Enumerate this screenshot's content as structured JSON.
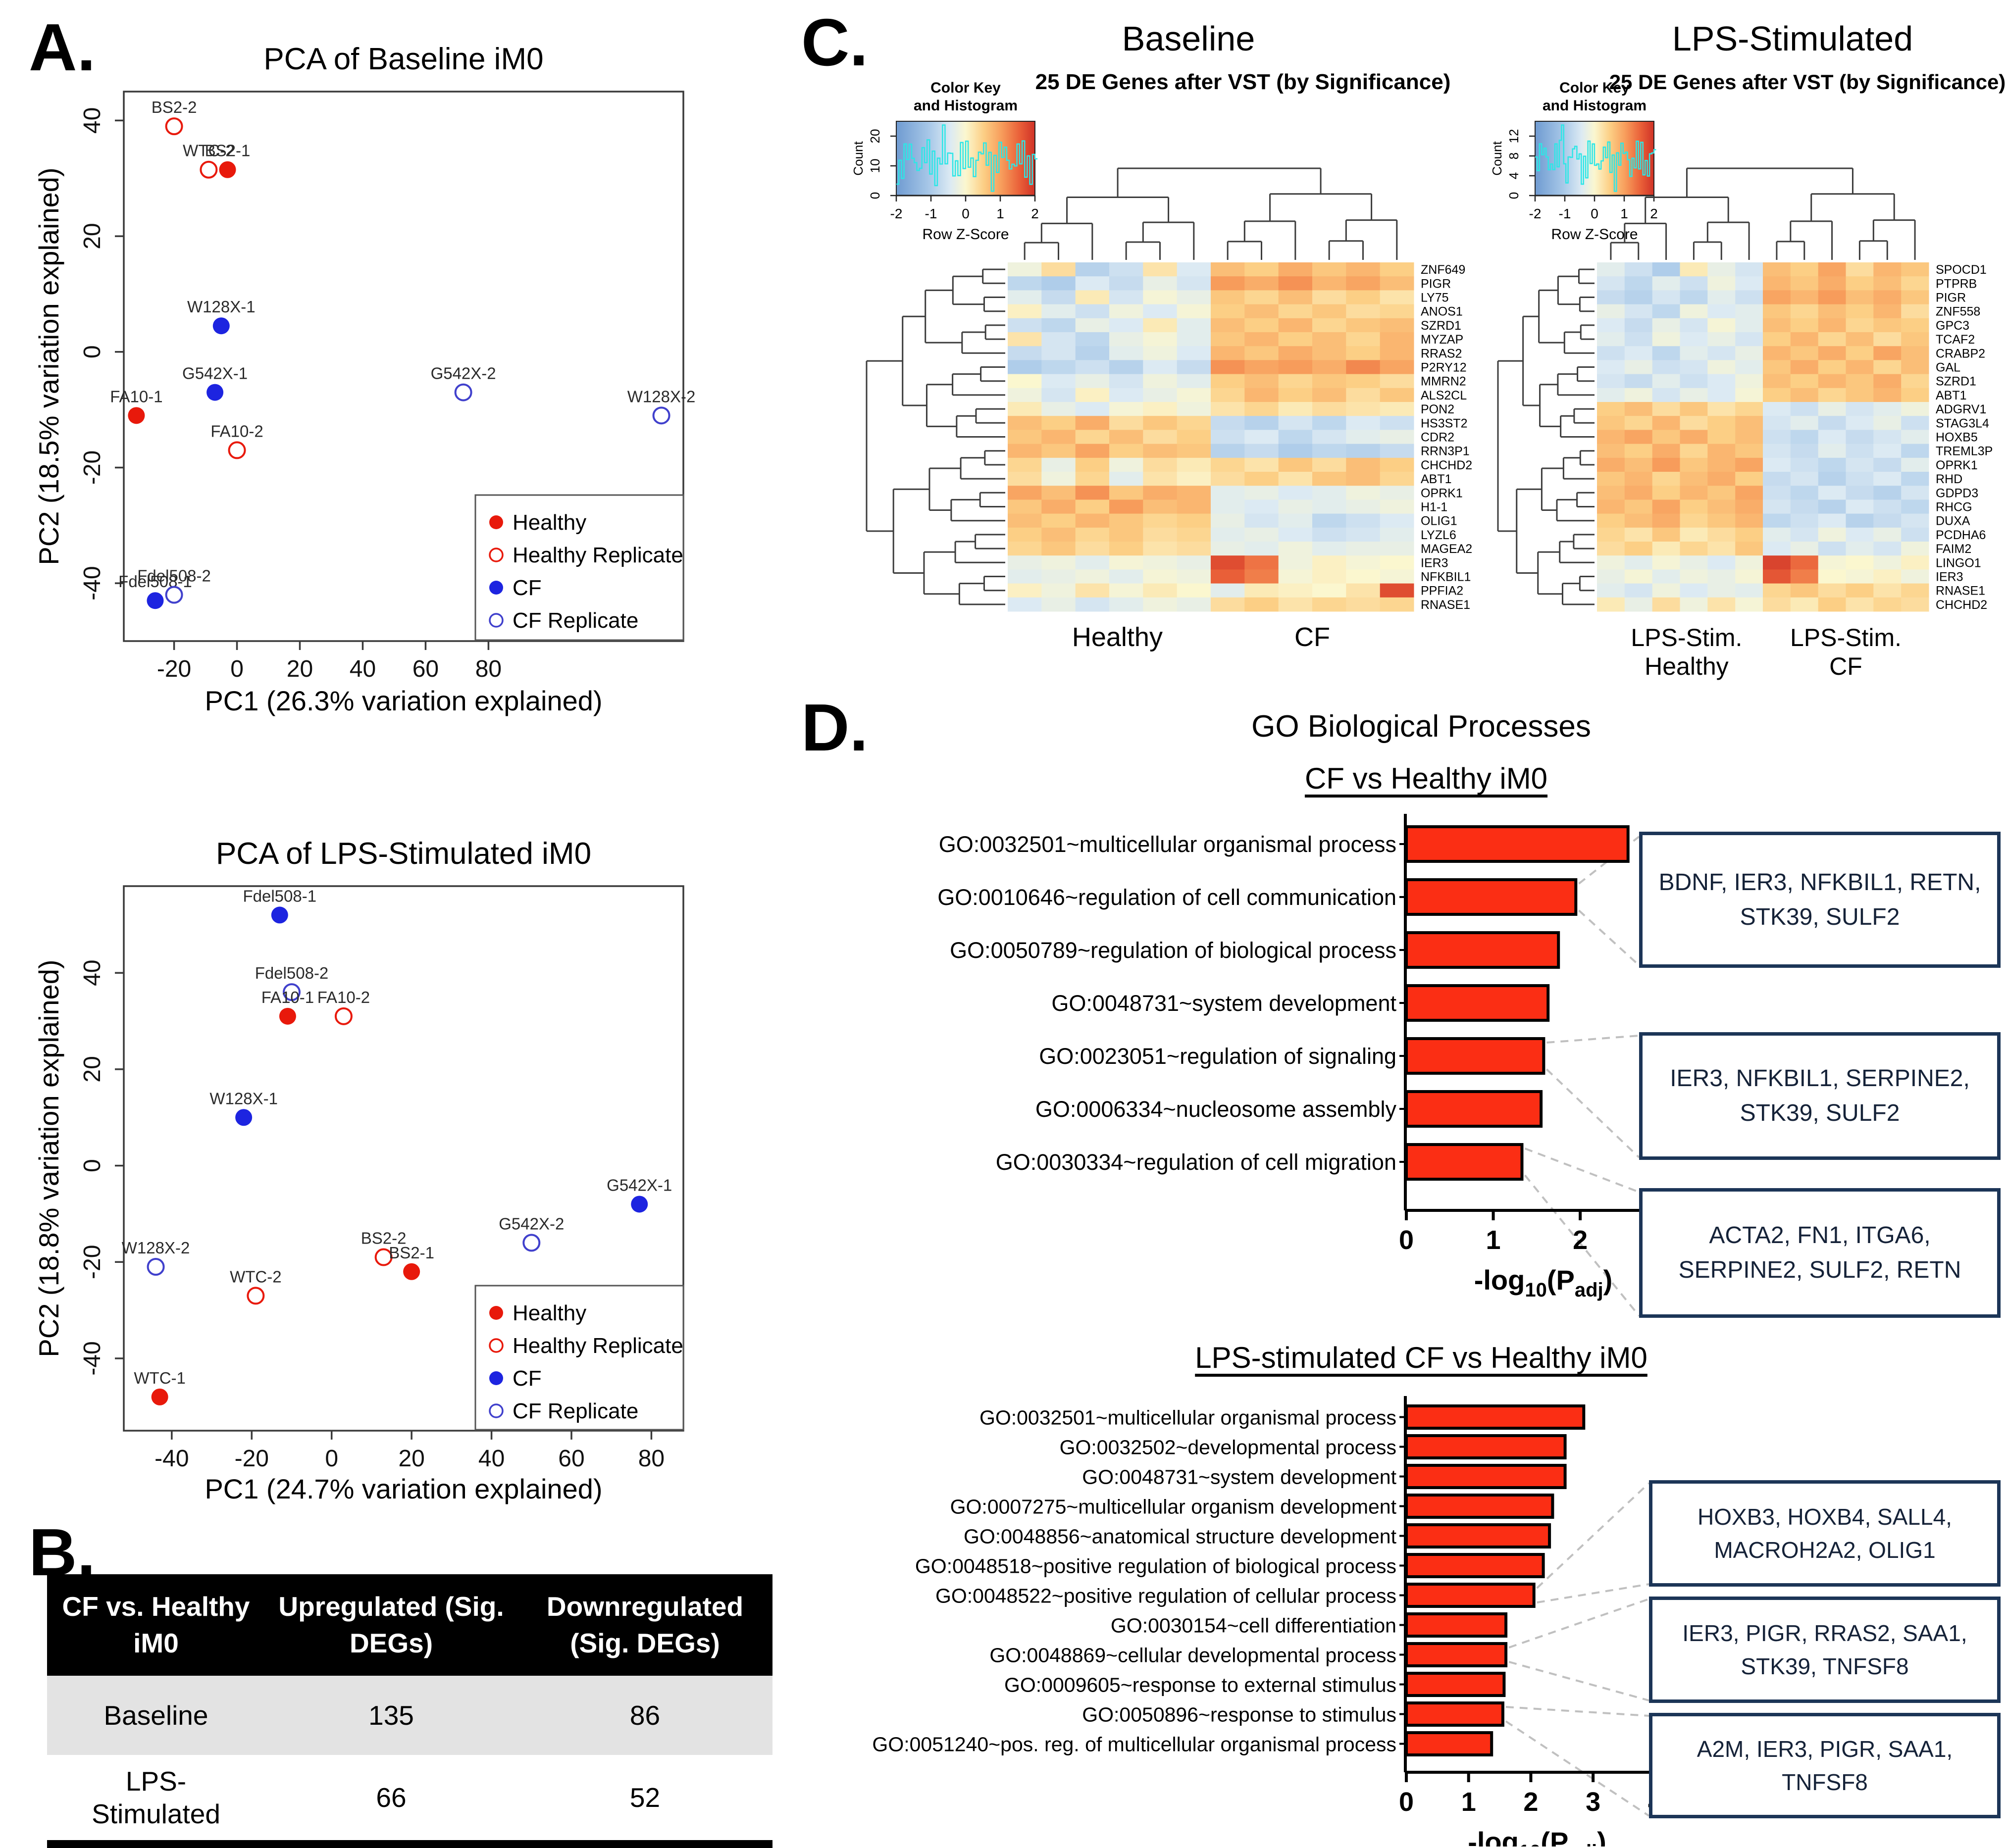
{
  "panels": {
    "a": "A.",
    "b": "B.",
    "c": "C.",
    "d": "D."
  },
  "colors": {
    "healthy": "#e8190b",
    "healthy_rep": "#e8190b",
    "cf": "#1d24e0",
    "cf_rep": "#4040cc",
    "bar_red": "#fb2e14",
    "box_border": "#1c3557",
    "dendro": "#3c3c3c",
    "hist_cyan": "#2ee6e6"
  },
  "table": {
    "headers": [
      "CF vs. Healthy iM0",
      "Upregulated (Sig. DEGs)",
      "Downregulated (Sig. DEGs)"
    ],
    "rows": [
      {
        "label": "Baseline",
        "up": "135",
        "down": "86"
      },
      {
        "label": "LPS-\nStimulated",
        "up": "66",
        "down": "52"
      }
    ]
  },
  "go": {
    "section_title": "GO Biological Processes",
    "xlabel": {
      "pre": "-log",
      "sub1": "10",
      "mid": "(P",
      "sub2": "adj",
      "post": ")"
    }
  },
  "chart_data": [
    {
      "id": "pca_baseline",
      "type": "scatter",
      "title": "PCA of Baseline iM0",
      "xlabel": "PC1 (26.3% variation explained)",
      "ylabel": "PC2 (18.5% variation explained)",
      "xlim": [
        -36,
        142
      ],
      "ylim": [
        -50,
        45
      ],
      "xticks": [
        -20,
        0,
        20,
        40,
        60,
        80
      ],
      "yticks": [
        -40,
        -20,
        0,
        20,
        40
      ],
      "legend": [
        "Healthy",
        "Healthy Replicate",
        "CF",
        "CF Replicate"
      ],
      "points": [
        {
          "label": "BS2-2",
          "x": -20,
          "y": 39,
          "group": "healthy_rep"
        },
        {
          "label": "WTC-2",
          "x": -9,
          "y": 31.5,
          "group": "healthy_rep"
        },
        {
          "label": "BS2-1",
          "x": -3,
          "y": 31.5,
          "group": "healthy"
        },
        {
          "label": "W128X-1",
          "x": -5,
          "y": 4.5,
          "group": "cf"
        },
        {
          "label": "G542X-1",
          "x": -7,
          "y": -7,
          "group": "cf"
        },
        {
          "label": "FA10-1",
          "x": -32,
          "y": -11,
          "group": "healthy"
        },
        {
          "label": "FA10-2",
          "x": 0,
          "y": -17,
          "group": "healthy_rep"
        },
        {
          "label": "G542X-2",
          "x": 72,
          "y": -7,
          "group": "cf_rep"
        },
        {
          "label": "W128X-2",
          "x": 135,
          "y": -11,
          "group": "cf_rep"
        },
        {
          "label": "Fdel508-1",
          "x": -26,
          "y": -43,
          "group": "cf"
        },
        {
          "label": "Fdel508-2",
          "x": -20,
          "y": -42,
          "group": "cf_rep"
        }
      ]
    },
    {
      "id": "pca_lps",
      "type": "scatter",
      "title": "PCA of LPS-Stimulated iM0",
      "xlabel": "PC1 (24.7% variation explained)",
      "ylabel": "PC2 (18.8% variation explained)",
      "xlim": [
        -52,
        88
      ],
      "ylim": [
        -55,
        58
      ],
      "xticks": [
        -40,
        -20,
        0,
        20,
        40,
        60,
        80
      ],
      "yticks": [
        -40,
        -20,
        0,
        20,
        40
      ],
      "legend": [
        "Healthy",
        "Healthy Replicate",
        "CF",
        "CF Replicate"
      ],
      "points": [
        {
          "label": "Fdel508-1",
          "x": -13,
          "y": 52,
          "group": "cf"
        },
        {
          "label": "Fdel508-2",
          "x": -10,
          "y": 36,
          "group": "cf_rep"
        },
        {
          "label": "FA10-1",
          "x": -11,
          "y": 31,
          "group": "healthy"
        },
        {
          "label": "FA10-2",
          "x": 3,
          "y": 31,
          "group": "healthy_rep"
        },
        {
          "label": "W128X-1",
          "x": -22,
          "y": 10,
          "group": "cf"
        },
        {
          "label": "W128X-2",
          "x": -44,
          "y": -21,
          "group": "cf_rep"
        },
        {
          "label": "WTC-2",
          "x": -19,
          "y": -27,
          "group": "healthy_rep"
        },
        {
          "label": "WTC-1",
          "x": -43,
          "y": -48,
          "group": "healthy"
        },
        {
          "label": "BS2-2",
          "x": 13,
          "y": -19,
          "group": "healthy_rep"
        },
        {
          "label": "BS2-1",
          "x": 20,
          "y": -22,
          "group": "healthy"
        },
        {
          "label": "G542X-2",
          "x": 50,
          "y": -16,
          "group": "cf_rep"
        },
        {
          "label": "G542X-1",
          "x": 77,
          "y": -8,
          "group": "cf"
        }
      ]
    },
    {
      "id": "heatmap_baseline",
      "type": "heatmap",
      "title": "Baseline",
      "subtitle": "25 DE Genes after VST (by Significance)",
      "colorkey": {
        "heading": [
          "Color Key",
          "and Histogram"
        ],
        "xlabel": "Row Z-Score",
        "ylabel": "Count",
        "xticks": [
          -2,
          -1,
          0,
          1,
          2
        ],
        "yticks": [
          0,
          10,
          20
        ]
      },
      "group_labels": [
        [
          "Healthy"
        ],
        [
          "CF"
        ]
      ],
      "genes": [
        "ZNF649",
        "PIGR",
        "LY75",
        "ANOS1",
        "SZRD1",
        "MYZAP",
        "RRAS2",
        "P2RY12",
        "MMRN2",
        "ALS2CL",
        "PON2",
        "HS3ST2",
        "CDR2",
        "RRN3P1",
        "CHCHD2",
        "ABT1",
        "OPRK1",
        "H1-1",
        "OLIG1",
        "LYZL6",
        "MAGEA2",
        "IER3",
        "NFKBIL1",
        "PPFIA2",
        "RNASE1"
      ],
      "values": [
        [
          -0.2,
          0.4,
          -1.0,
          -0.7,
          0.3,
          -0.5,
          0.8,
          0.6,
          1.0,
          0.7,
          0.9,
          0.6
        ],
        [
          -0.9,
          -1.1,
          -0.5,
          -0.8,
          -0.3,
          -0.6,
          1.2,
          1.0,
          1.3,
          0.9,
          1.1,
          0.8
        ],
        [
          -0.4,
          -0.8,
          0.2,
          -0.6,
          -0.1,
          -0.3,
          0.7,
          0.5,
          0.8,
          0.4,
          0.6,
          0.3
        ],
        [
          0.1,
          -0.4,
          -0.7,
          -0.2,
          -0.5,
          -0.1,
          0.6,
          0.8,
          0.5,
          0.7,
          0.4,
          0.5
        ],
        [
          -0.7,
          -0.9,
          -0.3,
          -0.5,
          0.2,
          -0.4,
          0.8,
          0.6,
          0.9,
          0.5,
          0.7,
          0.8
        ],
        [
          0.3,
          -0.6,
          -0.9,
          -0.3,
          -0.1,
          -0.4,
          0.7,
          0.9,
          0.6,
          0.8,
          0.5,
          0.9
        ],
        [
          -0.8,
          -0.6,
          -1.0,
          -0.4,
          -0.2,
          -0.5,
          0.9,
          0.7,
          1.0,
          0.8,
          0.6,
          0.9
        ],
        [
          -1.1,
          -0.9,
          -0.7,
          -1.0,
          -0.5,
          -0.8,
          1.3,
          1.1,
          1.2,
          1.0,
          1.4,
          1.1
        ],
        [
          0.0,
          -0.5,
          -0.3,
          -0.6,
          -0.2,
          -0.4,
          0.6,
          0.8,
          0.5,
          0.7,
          0.6,
          0.4
        ],
        [
          -0.2,
          -0.6,
          0.1,
          -0.5,
          -0.3,
          -0.1,
          0.5,
          0.9,
          0.6,
          0.8,
          0.4,
          0.7
        ],
        [
          0.2,
          -0.3,
          -0.5,
          -0.1,
          0.1,
          -0.2,
          0.3,
          0.5,
          0.2,
          0.4,
          0.3,
          0.2
        ],
        [
          0.8,
          0.6,
          1.0,
          0.4,
          0.7,
          0.5,
          -0.8,
          -1.0,
          -0.6,
          -0.9,
          -0.5,
          -0.7
        ],
        [
          0.7,
          0.9,
          0.5,
          0.8,
          0.4,
          0.6,
          -0.7,
          -0.5,
          -0.9,
          -0.6,
          -0.4,
          -0.3
        ],
        [
          0.9,
          0.7,
          1.1,
          0.6,
          0.8,
          0.7,
          -1.0,
          -0.8,
          -1.1,
          -0.9,
          -1.0,
          -0.8
        ],
        [
          0.5,
          -0.3,
          0.6,
          -0.2,
          0.4,
          0.2,
          0.5,
          0.3,
          0.7,
          0.4,
          0.8,
          0.6
        ],
        [
          0.4,
          -0.2,
          0.5,
          -0.4,
          0.3,
          0.1,
          0.4,
          0.6,
          0.3,
          0.7,
          0.8,
          0.5
        ],
        [
          1.1,
          0.8,
          1.3,
          0.7,
          1.0,
          0.9,
          -0.4,
          -0.3,
          -0.5,
          -0.4,
          -0.2,
          -0.3
        ],
        [
          0.7,
          1.0,
          0.6,
          1.2,
          0.8,
          0.9,
          -0.4,
          -0.5,
          -0.3,
          -0.4,
          -0.3,
          -0.2
        ],
        [
          0.8,
          0.6,
          0.9,
          0.7,
          0.5,
          0.6,
          -0.3,
          -0.6,
          -0.4,
          -0.9,
          -0.7,
          -0.5
        ],
        [
          0.6,
          0.8,
          0.5,
          0.7,
          0.4,
          0.5,
          -0.4,
          -0.3,
          -0.5,
          -0.7,
          -0.6,
          -0.4
        ],
        [
          0.5,
          0.7,
          0.4,
          0.6,
          0.3,
          0.4,
          -0.3,
          -0.4,
          -0.2,
          -0.4,
          -0.3,
          -0.3
        ],
        [
          -0.3,
          -0.2,
          -0.4,
          -0.1,
          -0.2,
          -0.3,
          2.0,
          1.6,
          -0.2,
          0.1,
          -0.1,
          0.0
        ],
        [
          -0.4,
          -0.3,
          -0.2,
          -0.4,
          -0.1,
          -0.2,
          1.8,
          1.5,
          -0.1,
          0.1,
          0.0,
          -0.1
        ],
        [
          0.1,
          -0.2,
          0.3,
          -0.1,
          0.2,
          0.0,
          -0.4,
          0.2,
          0.1,
          0.0,
          0.3,
          2.0
        ],
        [
          -0.5,
          -0.3,
          -0.6,
          -0.4,
          -0.2,
          -0.3,
          0.4,
          0.6,
          0.3,
          0.5,
          0.4,
          0.5
        ]
      ]
    },
    {
      "id": "heatmap_lps",
      "type": "heatmap",
      "title": "LPS-Stimulated",
      "subtitle": "25 DE Genes after VST (by Significance)",
      "colorkey": {
        "heading": [
          "Color Key",
          "and Histogram"
        ],
        "xlabel": "Row Z-Score",
        "ylabel": "Count",
        "xticks": [
          -2,
          -1,
          0,
          1,
          2
        ],
        "yticks": [
          0,
          4,
          8,
          12
        ]
      },
      "group_labels": [
        [
          "LPS-Stim.",
          "Healthy"
        ],
        [
          "LPS-Stim.",
          "CF"
        ]
      ],
      "genes": [
        "SPOCD1",
        "PTPRB",
        "PIGR",
        "ZNF558",
        "GPC3",
        "TCAF2",
        "CRABP2",
        "GAL",
        "SZRD1",
        "ABT1",
        "ADGRV1",
        "STAG3L4",
        "HOXB5",
        "TREML3P",
        "OPRK1",
        "RHD",
        "GDPD3",
        "RHCG",
        "DUXA",
        "PCDHA6",
        "FAIM2",
        "LINGO1",
        "IER3",
        "RNASE1",
        "CHCHD2"
      ],
      "values": [
        [
          -0.4,
          -0.7,
          -1.1,
          0.2,
          -0.3,
          -0.6,
          0.8,
          0.6,
          1.1,
          0.4,
          0.9,
          0.7
        ],
        [
          -0.6,
          -0.9,
          -0.4,
          -0.7,
          -0.2,
          -0.5,
          0.9,
          0.7,
          1.0,
          0.6,
          0.8,
          0.5
        ],
        [
          -0.8,
          -1.0,
          -0.6,
          -0.9,
          -0.4,
          -0.7,
          1.1,
          0.9,
          1.2,
          0.8,
          1.0,
          0.7
        ],
        [
          -0.3,
          -0.6,
          -0.9,
          -0.2,
          -0.5,
          -0.4,
          0.7,
          0.5,
          0.8,
          0.6,
          0.9,
          0.4
        ],
        [
          -0.5,
          -0.8,
          -0.3,
          -0.6,
          -0.1,
          -0.4,
          0.8,
          0.6,
          0.9,
          0.5,
          0.7,
          0.6
        ],
        [
          -0.4,
          -0.7,
          -0.2,
          -0.5,
          -0.3,
          -0.6,
          0.6,
          0.9,
          0.5,
          0.8,
          0.4,
          0.7
        ],
        [
          -0.7,
          -0.5,
          -0.9,
          -0.4,
          -0.6,
          -0.3,
          0.9,
          0.7,
          1.0,
          0.6,
          1.1,
          0.8
        ],
        [
          -0.5,
          -0.3,
          -0.7,
          -0.6,
          -0.2,
          -0.4,
          0.7,
          1.0,
          0.6,
          0.9,
          0.5,
          0.8
        ],
        [
          -0.6,
          -0.8,
          -0.4,
          -0.7,
          -0.5,
          -0.2,
          0.8,
          0.6,
          0.9,
          0.7,
          1.0,
          0.5
        ],
        [
          -0.4,
          -0.2,
          -0.6,
          -0.3,
          -0.5,
          -0.1,
          0.6,
          0.8,
          0.5,
          0.7,
          0.9,
          0.6
        ],
        [
          0.6,
          0.8,
          0.4,
          0.7,
          0.3,
          0.5,
          -0.5,
          -0.7,
          -0.3,
          -0.6,
          -0.4,
          -0.2
        ],
        [
          0.7,
          0.5,
          0.9,
          0.4,
          0.6,
          0.8,
          -0.6,
          -0.4,
          -0.8,
          -0.5,
          -0.3,
          -0.7
        ],
        [
          0.9,
          1.1,
          0.7,
          1.0,
          0.6,
          0.8,
          -0.7,
          -0.9,
          -0.5,
          -0.8,
          -0.6,
          -0.4
        ],
        [
          0.8,
          0.6,
          1.0,
          0.5,
          0.9,
          0.7,
          -0.6,
          -0.8,
          -0.4,
          -0.7,
          -0.5,
          -0.9
        ],
        [
          1.0,
          0.8,
          1.2,
          0.7,
          0.9,
          1.1,
          -0.5,
          -0.7,
          -0.9,
          -0.6,
          -0.8,
          -0.4
        ],
        [
          0.7,
          0.9,
          0.5,
          0.8,
          1.0,
          0.6,
          -0.8,
          -0.6,
          -1.0,
          -0.7,
          -0.5,
          -0.9
        ],
        [
          0.8,
          1.0,
          0.6,
          0.9,
          0.7,
          1.1,
          -0.7,
          -0.9,
          -0.5,
          -0.8,
          -1.0,
          -0.6
        ],
        [
          0.9,
          0.7,
          1.1,
          0.6,
          0.8,
          1.0,
          -0.6,
          -0.8,
          -1.0,
          -0.5,
          -0.7,
          -0.9
        ],
        [
          0.6,
          0.8,
          1.0,
          0.5,
          0.7,
          0.9,
          -0.9,
          -0.7,
          -0.5,
          -1.0,
          -0.8,
          -0.6
        ],
        [
          0.5,
          0.3,
          0.7,
          0.2,
          0.4,
          0.6,
          -0.4,
          -0.6,
          -0.2,
          -0.5,
          -0.3,
          -0.7
        ],
        [
          0.4,
          0.6,
          0.2,
          0.5,
          0.3,
          0.7,
          -0.5,
          -0.3,
          -0.7,
          -0.4,
          -0.6,
          -0.2
        ],
        [
          -0.2,
          -0.4,
          -0.1,
          -0.3,
          -0.5,
          -0.2,
          2.1,
          1.7,
          -0.1,
          0.0,
          -0.2,
          0.1
        ],
        [
          -0.3,
          -0.1,
          -0.4,
          -0.2,
          -0.3,
          -0.1,
          1.9,
          1.5,
          0.0,
          -0.1,
          0.1,
          -0.2
        ],
        [
          -0.4,
          -0.6,
          -0.2,
          -0.5,
          -0.3,
          -0.4,
          0.5,
          0.7,
          0.4,
          0.6,
          0.3,
          0.5
        ],
        [
          0.2,
          -0.3,
          0.4,
          -0.2,
          0.3,
          -0.1,
          0.4,
          0.2,
          0.6,
          0.3,
          0.5,
          0.4
        ]
      ]
    },
    {
      "id": "go_cf",
      "type": "bar",
      "title": "CF vs Healthy iM0",
      "xlim": [
        0,
        3.15
      ],
      "xticks": [
        0,
        1,
        2,
        3
      ],
      "categories": [
        "GO:0032501~multicellular organismal process",
        "GO:0010646~regulation of cell communication",
        "GO:0050789~regulation of biological process",
        "GO:0048731~system development",
        "GO:0023051~regulation of signaling",
        "GO:0006334~nucleosome assembly",
        "GO:0030334~regulation of cell migration"
      ],
      "values": [
        2.55,
        1.95,
        1.75,
        1.63,
        1.58,
        1.55,
        1.33
      ],
      "annotations": [
        "BDNF, IER3, NFKBIL1, RETN, STK39, SULF2",
        "IER3, NFKBIL1, SERPINE2, STK39, SULF2",
        "ACTA2, FN1, ITGA6, SERPINE2, SULF2, RETN"
      ]
    },
    {
      "id": "go_lps",
      "type": "bar",
      "title": "LPS-stimulated CF vs Healthy iM0",
      "xlim": [
        0,
        4.2
      ],
      "xticks": [
        0,
        1,
        2,
        3,
        4
      ],
      "categories": [
        "GO:0032501~multicellular organismal process",
        "GO:0032502~developmental process",
        "GO:0048731~system development",
        "GO:0007275~multicellular organism development",
        "GO:0048856~anatomical structure development",
        "GO:0048518~positive regulation of biological process",
        "GO:0048522~positive regulation of cellular process",
        "GO:0030154~cell differentiation",
        "GO:0048869~cellular developmental process",
        "GO:0009605~response to external stimulus",
        "GO:0050896~response to stimulus",
        "GO:0051240~pos. reg. of multicellular organismal process"
      ],
      "values": [
        2.85,
        2.55,
        2.55,
        2.35,
        2.3,
        2.2,
        2.05,
        1.6,
        1.6,
        1.57,
        1.55,
        1.37
      ],
      "annotations": [
        "HOXB3, HOXB4, SALL4, MACROH2A2, OLIG1",
        "IER3, PIGR, RRAS2, SAA1, STK39, TNFSF8",
        "A2M, IER3, PIGR, SAA1, TNFSF8"
      ]
    }
  ]
}
